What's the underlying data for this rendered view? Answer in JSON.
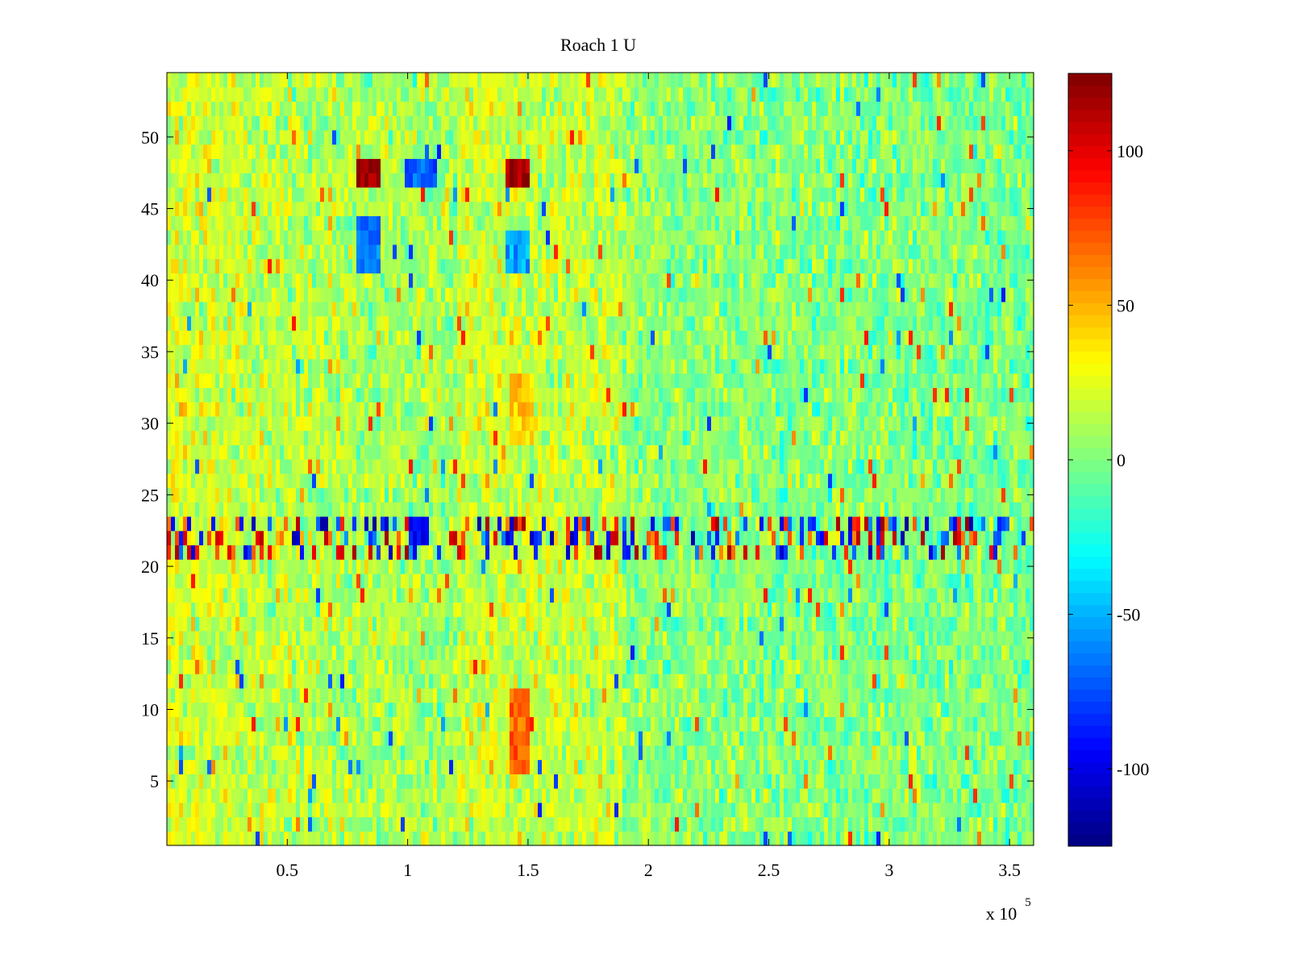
{
  "chart_data": {
    "type": "heatmap",
    "title": "Roach 1 U",
    "xlabel": "",
    "ylabel": "",
    "x_range": [
      0,
      360000
    ],
    "y_range": [
      0.5,
      54.5
    ],
    "rows": 54,
    "x_ticks": [
      50000,
      100000,
      150000,
      200000,
      250000,
      300000,
      350000
    ],
    "x_tick_labels": [
      "0.5",
      "1",
      "1.5",
      "2",
      "2.5",
      "3",
      "3.5"
    ],
    "x_multiplier_label": "x 10",
    "x_multiplier_exponent": "5",
    "y_ticks": [
      5,
      10,
      15,
      20,
      25,
      30,
      35,
      40,
      45,
      50
    ],
    "y_tick_labels": [
      "5",
      "10",
      "15",
      "20",
      "25",
      "30",
      "35",
      "40",
      "45",
      "50"
    ],
    "colorbar": {
      "colormap": "jet",
      "range": [
        -125,
        125
      ],
      "ticks": [
        -100,
        -50,
        0,
        50,
        100
      ],
      "tick_labels": [
        "-100",
        "-50",
        "0",
        "50",
        "100"
      ]
    },
    "grid": false,
    "legend": "none",
    "hot_spots": [
      {
        "x": [
          78000,
          88000
        ],
        "rows": [
          47,
          48
        ],
        "value": 120
      },
      {
        "x": [
          141000,
          151000
        ],
        "rows": [
          47,
          48
        ],
        "value": 115
      },
      {
        "x": [
          98000,
          112000
        ],
        "rows": [
          47,
          48
        ],
        "value": -70
      },
      {
        "x": [
          79000,
          88000
        ],
        "rows": [
          41,
          44
        ],
        "value": -65
      },
      {
        "x": [
          141000,
          150000
        ],
        "rows": [
          41,
          43
        ],
        "value": -50
      },
      {
        "x": [
          100000,
          108000
        ],
        "rows": [
          22,
          23
        ],
        "value": -90
      },
      {
        "x": [
          142000,
          150000
        ],
        "rows": [
          6,
          11
        ],
        "value": 70
      },
      {
        "x": [
          142000,
          152000
        ],
        "rows": [
          29,
          33
        ],
        "value": 45
      }
    ]
  }
}
